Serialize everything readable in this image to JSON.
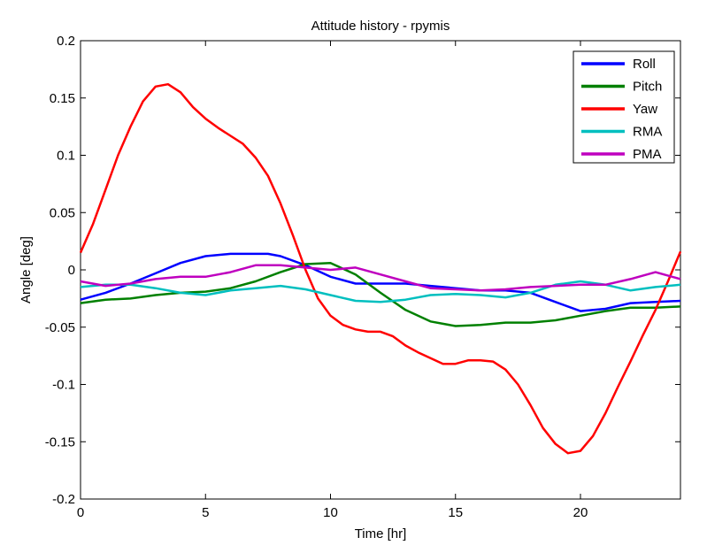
{
  "chart_data": {
    "type": "line",
    "title": "Attitude history - rpymis",
    "xlabel": "Time [hr]",
    "ylabel": "Angle [deg]",
    "xlim": [
      0,
      24
    ],
    "ylim": [
      -0.2,
      0.2
    ],
    "x_ticks": [
      0,
      5,
      10,
      15,
      20
    ],
    "x_tick_labels": [
      "0",
      "5",
      "10",
      "15",
      "20"
    ],
    "y_ticks": [
      0.2,
      0.15,
      0.1,
      0.05,
      0,
      -0.05,
      -0.1,
      -0.15,
      -0.2
    ],
    "y_tick_labels": [
      "0.2",
      "0.15",
      "0.1",
      "0.05",
      "0",
      "-0.05",
      "-0.1",
      "-0.15",
      "-0.2"
    ],
    "grid": false,
    "legend_position": "top-right",
    "series": [
      {
        "name": "Roll",
        "color": "#0000ff",
        "x": [
          0,
          1,
          2,
          3,
          4,
          5,
          6,
          7,
          7.5,
          8,
          9,
          10,
          11,
          12,
          13,
          14,
          15,
          16,
          17,
          18,
          19,
          20,
          21,
          22,
          23,
          24
        ],
        "y": [
          -0.026,
          -0.02,
          -0.012,
          -0.003,
          0.006,
          0.012,
          0.014,
          0.014,
          0.014,
          0.012,
          0.004,
          -0.006,
          -0.012,
          -0.012,
          -0.012,
          -0.014,
          -0.016,
          -0.018,
          -0.018,
          -0.02,
          -0.028,
          -0.036,
          -0.034,
          -0.029,
          -0.028,
          -0.027
        ]
      },
      {
        "name": "Pitch",
        "color": "#008000",
        "x": [
          0,
          1,
          2,
          3,
          4,
          5,
          6,
          7,
          8,
          9,
          10,
          11,
          12,
          13,
          14,
          15,
          16,
          17,
          18,
          19,
          20,
          21,
          22,
          23,
          24
        ],
        "y": [
          -0.029,
          -0.026,
          -0.025,
          -0.022,
          -0.02,
          -0.019,
          -0.016,
          -0.01,
          -0.002,
          0.005,
          0.006,
          -0.004,
          -0.02,
          -0.035,
          -0.045,
          -0.049,
          -0.048,
          -0.046,
          -0.046,
          -0.044,
          -0.04,
          -0.036,
          -0.033,
          -0.033,
          -0.032
        ]
      },
      {
        "name": "Yaw",
        "color": "#ff0000",
        "x": [
          0,
          0.5,
          1,
          1.5,
          2,
          2.5,
          3,
          3.5,
          4,
          4.5,
          5,
          5.5,
          6,
          6.5,
          7,
          7.5,
          8,
          8.5,
          9,
          9.5,
          10,
          10.5,
          11,
          11.5,
          12,
          12.5,
          13,
          13.5,
          14,
          14.5,
          15,
          15.5,
          16,
          16.5,
          17,
          17.5,
          18,
          18.5,
          19,
          19.5,
          20,
          20.5,
          21,
          21.5,
          22,
          22.5,
          23,
          23.5,
          24
        ],
        "y": [
          0.015,
          0.04,
          0.07,
          0.1,
          0.125,
          0.147,
          0.16,
          0.162,
          0.155,
          0.142,
          0.132,
          0.124,
          0.117,
          0.11,
          0.098,
          0.082,
          0.058,
          0.03,
          0.0,
          -0.025,
          -0.04,
          -0.048,
          -0.052,
          -0.054,
          -0.054,
          -0.058,
          -0.066,
          -0.072,
          -0.077,
          -0.082,
          -0.082,
          -0.079,
          -0.079,
          -0.08,
          -0.087,
          -0.1,
          -0.118,
          -0.138,
          -0.152,
          -0.16,
          -0.158,
          -0.145,
          -0.125,
          -0.102,
          -0.08,
          -0.057,
          -0.035,
          -0.01,
          0.016
        ]
      },
      {
        "name": "RMA",
        "color": "#00bfbf",
        "x": [
          0,
          1,
          2,
          3,
          4,
          5,
          6,
          7,
          8,
          9,
          10,
          11,
          12,
          13,
          14,
          15,
          16,
          17,
          18,
          19,
          20,
          21,
          22,
          23,
          24
        ],
        "y": [
          -0.015,
          -0.013,
          -0.013,
          -0.016,
          -0.02,
          -0.022,
          -0.018,
          -0.016,
          -0.014,
          -0.017,
          -0.022,
          -0.027,
          -0.028,
          -0.026,
          -0.022,
          -0.021,
          -0.022,
          -0.024,
          -0.02,
          -0.013,
          -0.01,
          -0.013,
          -0.018,
          -0.015,
          -0.013
        ]
      },
      {
        "name": "PMA",
        "color": "#bf00bf",
        "x": [
          0,
          1,
          2,
          3,
          4,
          5,
          6,
          7,
          8,
          9,
          10,
          11,
          12,
          13,
          14,
          15,
          16,
          17,
          18,
          19,
          20,
          21,
          22,
          23,
          24
        ],
        "y": [
          -0.01,
          -0.014,
          -0.012,
          -0.008,
          -0.006,
          -0.006,
          -0.002,
          0.004,
          0.004,
          0.002,
          0.0,
          0.002,
          -0.004,
          -0.01,
          -0.016,
          -0.017,
          -0.018,
          -0.017,
          -0.015,
          -0.014,
          -0.013,
          -0.013,
          -0.008,
          -0.002,
          -0.008
        ]
      }
    ]
  }
}
